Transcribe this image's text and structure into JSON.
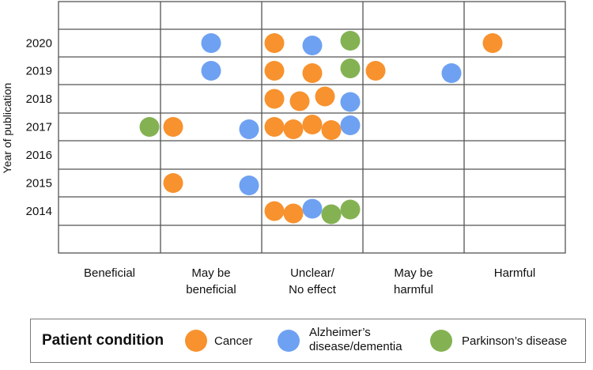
{
  "chart_data": {
    "type": "scatter",
    "ylabel": "Year of publication",
    "x_categories": [
      "Beneficial",
      "May be beneficial",
      "Unclear/ No effect",
      "May be harmful",
      "Harmful"
    ],
    "x_category_lines": [
      [
        "Beneficial"
      ],
      [
        "May be",
        "beneficial"
      ],
      [
        "Unclear/",
        "No effect"
      ],
      [
        "May be",
        "harmful"
      ],
      [
        "Harmful"
      ]
    ],
    "y_ticks": [
      2020,
      2019,
      2018,
      2017,
      2016,
      2015,
      2014
    ],
    "series": [
      {
        "name": "Cancer",
        "color": "#F7922E",
        "points": [
          {
            "category": "Unclear/ No effect",
            "year": 2020
          },
          {
            "category": "Harmful",
            "year": 2020
          },
          {
            "category": "Unclear/ No effect",
            "year": 2019
          },
          {
            "category": "Unclear/ No effect",
            "year": 2019
          },
          {
            "category": "May be harmful",
            "year": 2019
          },
          {
            "category": "Unclear/ No effect",
            "year": 2018
          },
          {
            "category": "Unclear/ No effect",
            "year": 2018
          },
          {
            "category": "Unclear/ No effect",
            "year": 2018
          },
          {
            "category": "May be beneficial",
            "year": 2017
          },
          {
            "category": "Unclear/ No effect",
            "year": 2017
          },
          {
            "category": "Unclear/ No effect",
            "year": 2017
          },
          {
            "category": "Unclear/ No effect",
            "year": 2017
          },
          {
            "category": "Unclear/ No effect",
            "year": 2017
          },
          {
            "category": "May be beneficial",
            "year": 2015
          },
          {
            "category": "Unclear/ No effect",
            "year": 2014
          },
          {
            "category": "Unclear/ No effect",
            "year": 2014
          }
        ]
      },
      {
        "name": "Alzheimer's disease/dementia",
        "color": "#6EA1F2",
        "points": [
          {
            "category": "May be beneficial",
            "year": 2020
          },
          {
            "category": "Unclear/ No effect",
            "year": 2020
          },
          {
            "category": "May be beneficial",
            "year": 2019
          },
          {
            "category": "May be harmful",
            "year": 2019
          },
          {
            "category": "Unclear/ No effect",
            "year": 2018
          },
          {
            "category": "May be beneficial",
            "year": 2017
          },
          {
            "category": "Unclear/ No effect",
            "year": 2017
          },
          {
            "category": "May be beneficial",
            "year": 2015
          },
          {
            "category": "Unclear/ No effect",
            "year": 2014
          }
        ]
      },
      {
        "name": "Parkinson's disease",
        "color": "#84B253",
        "points": [
          {
            "category": "Unclear/ No effect",
            "year": 2020
          },
          {
            "category": "Unclear/ No effect",
            "year": 2019
          },
          {
            "category": "Beneficial",
            "year": 2017
          },
          {
            "category": "Unclear/ No effect",
            "year": 2014
          },
          {
            "category": "Unclear/ No effect",
            "year": 2014
          }
        ]
      }
    ]
  },
  "legend": {
    "title": "Patient condition",
    "items": [
      {
        "label_lines": [
          "Cancer"
        ],
        "color": "#F7922E"
      },
      {
        "label_lines": [
          "Alzheimer’s",
          "disease/dementia"
        ],
        "color": "#6EA1F2"
      },
      {
        "label_lines": [
          "Parkinson’s disease"
        ],
        "color": "#84B253"
      }
    ]
  }
}
